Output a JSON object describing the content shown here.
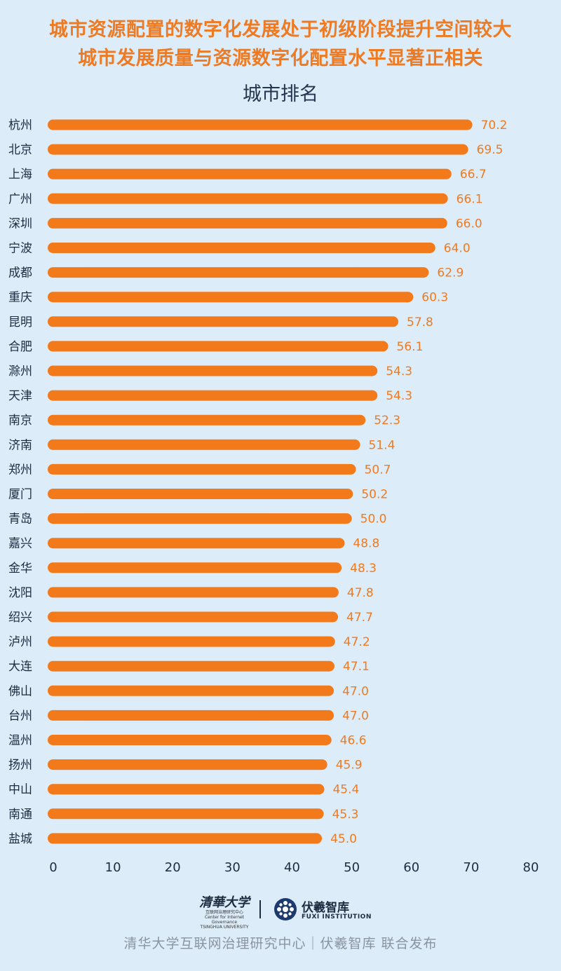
{
  "headline_line1": "城市资源配置的数字化发展处于初级阶段提升空间较大",
  "headline_line2": "城市发展质量与资源数字化配置水平显著正相关",
  "colors": {
    "bar": "#f27a1a",
    "value_label": "#ee7b23",
    "background": "#dcecf8",
    "headline": "#ee7b23"
  },
  "chart_data": {
    "type": "bar",
    "orientation": "horizontal",
    "title": "城市排名",
    "categories": [
      "杭州",
      "北京",
      "上海",
      "广州",
      "深圳",
      "宁波",
      "成都",
      "重庆",
      "昆明",
      "合肥",
      "滁州",
      "天津",
      "南京",
      "济南",
      "郑州",
      "厦门",
      "青岛",
      "嘉兴",
      "金华",
      "沈阳",
      "绍兴",
      "泸州",
      "大连",
      "佛山",
      "台州",
      "温州",
      "扬州",
      "中山",
      "南通",
      "盐城"
    ],
    "values": [
      70.2,
      69.5,
      66.7,
      66.1,
      66.0,
      64.0,
      62.9,
      60.3,
      57.8,
      56.1,
      54.3,
      54.3,
      52.3,
      51.4,
      50.7,
      50.2,
      50.0,
      48.8,
      48.3,
      47.8,
      47.7,
      47.2,
      47.1,
      47.0,
      47.0,
      46.6,
      45.9,
      45.4,
      45.3,
      45.0
    ],
    "value_labels": [
      "70.2",
      "69.5",
      "66.7",
      "66.1",
      "66.0",
      "64.0",
      "62.9",
      "60.3",
      "57.8",
      "56.1",
      "54.3",
      "54.3",
      "52.3",
      "51.4",
      "50.7",
      "50.2",
      "50.0",
      "48.8",
      "48.3",
      "47.8",
      "47.7",
      "47.2",
      "47.1",
      "47.0",
      "47.0",
      "46.6",
      "45.9",
      "45.4",
      "45.3",
      "45.0"
    ],
    "xlim": [
      0,
      80
    ],
    "xticks": [
      "0",
      "10",
      "20",
      "30",
      "40",
      "50",
      "60",
      "70",
      "80"
    ],
    "xlabel": "",
    "ylabel": "",
    "grid": false,
    "legend": "none"
  },
  "logos": {
    "tsinghua_text": "清華大学",
    "tsinghua_sub1": "互联网治理研究中心",
    "tsinghua_sub2": "Center for Internet Governance",
    "tsinghua_sub3": "TSINGHUA UNIVERSITY",
    "fuxi_text": "伏羲智库",
    "fuxi_en": "FUXI INSTITUTION"
  },
  "footer_text": "清华大学互联网治理研究中心｜伏羲智库  联合发布"
}
